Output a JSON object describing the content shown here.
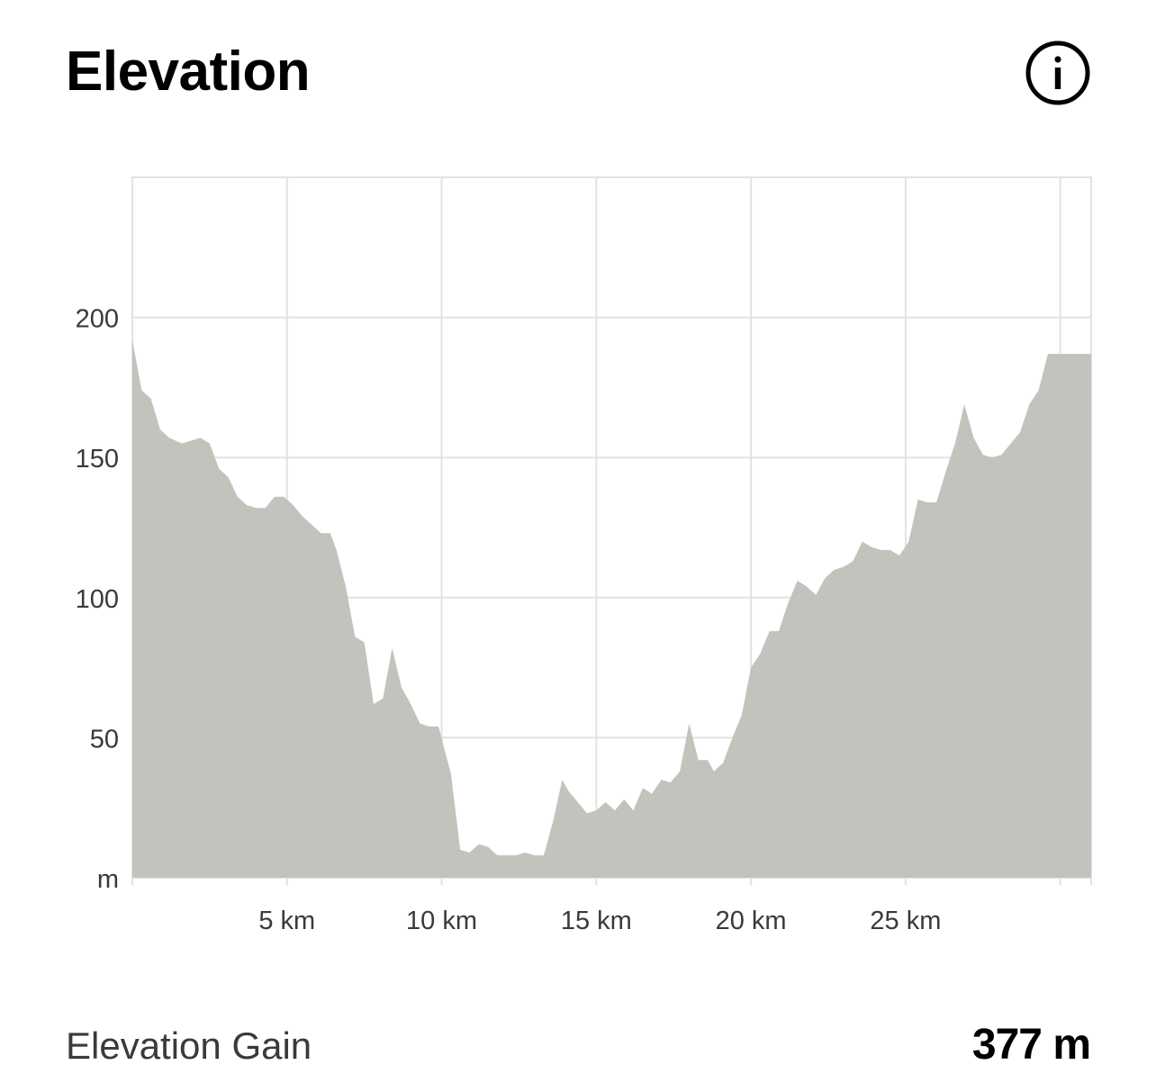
{
  "header": {
    "title": "Elevation",
    "info_icon": "info-circle-icon"
  },
  "stats": {
    "label": "Elevation Gain",
    "value": "377 m"
  },
  "colors": {
    "area_fill": "#c3c2bd",
    "grid": "#e2e2e2",
    "text": "#3a3a3a"
  },
  "chart_data": {
    "type": "area",
    "title": "Elevation",
    "xlabel": "",
    "ylabel": "",
    "y_unit_label": "m",
    "xlim": [
      0,
      31
    ],
    "ylim": [
      0,
      250
    ],
    "grid": true,
    "y_ticks": [
      {
        "value": 0,
        "label": "m"
      },
      {
        "value": 50,
        "label": "50"
      },
      {
        "value": 100,
        "label": "100"
      },
      {
        "value": 150,
        "label": "150"
      },
      {
        "value": 200,
        "label": "200"
      }
    ],
    "x_ticks": [
      {
        "value": 5,
        "label": "5 km"
      },
      {
        "value": 10,
        "label": "10 km"
      },
      {
        "value": 15,
        "label": "15 km"
      },
      {
        "value": 20,
        "label": "20 km"
      },
      {
        "value": 25,
        "label": "25 km"
      }
    ],
    "x_gridlines": [
      0,
      5,
      10,
      15,
      20,
      25,
      30,
      31
    ],
    "series": [
      {
        "x": [
          0,
          0.3,
          0.6,
          0.9,
          1.2,
          1.6,
          2.2,
          2.5,
          2.8,
          3.1,
          3.4,
          3.7,
          4.0,
          4.3,
          4.6,
          4.9,
          5.2,
          5.5,
          5.8,
          6.1,
          6.4,
          6.6,
          6.9,
          7.2,
          7.5,
          7.8,
          8.1,
          8.4,
          8.7,
          9.0,
          9.3,
          9.6,
          9.9,
          10.3,
          10.6,
          10.9,
          11.2,
          11.5,
          11.8,
          12.1,
          12.4,
          12.7,
          13.0,
          13.3,
          13.6,
          13.9,
          14.1,
          14.4,
          14.7,
          15.0,
          15.3,
          15.6,
          15.9,
          16.2,
          16.5,
          16.8,
          17.1,
          17.4,
          17.7,
          18.0,
          18.3,
          18.6,
          18.8,
          19.1,
          19.4,
          19.7,
          20.0,
          20.3,
          20.6,
          20.9,
          21.2,
          21.5,
          21.8,
          22.1,
          22.4,
          22.7,
          23.0,
          23.3,
          23.6,
          23.9,
          24.2,
          24.5,
          24.8,
          25.1,
          25.4,
          25.7,
          26.0,
          26.3,
          26.6,
          26.9,
          27.2,
          27.5,
          27.8,
          28.1,
          28.4,
          28.7,
          29.0,
          29.3,
          29.6,
          29.9,
          30.2,
          30.5,
          30.8,
          31.0
        ],
        "values": [
          192,
          174,
          171,
          160,
          157,
          155,
          157,
          155,
          146,
          143,
          136,
          133,
          132,
          132,
          136,
          136,
          133,
          129,
          126,
          123,
          123,
          117,
          104,
          86,
          84,
          62,
          64,
          82,
          68,
          62,
          55,
          54,
          54,
          37,
          10,
          9,
          12,
          11,
          8,
          8,
          8,
          9,
          8,
          8,
          20,
          35,
          31,
          27,
          23,
          24,
          27,
          24,
          28,
          24,
          32,
          30,
          35,
          34,
          38,
          55,
          42,
          42,
          38,
          41,
          50,
          58,
          75,
          80,
          88,
          88,
          98,
          106,
          104,
          101,
          107,
          110,
          111,
          113,
          120,
          118,
          117,
          117,
          115,
          120,
          135,
          134,
          134,
          145,
          155,
          169,
          157,
          151,
          150,
          151,
          155,
          159,
          169,
          174,
          187,
          187,
          187,
          187,
          187,
          187
        ]
      }
    ]
  }
}
